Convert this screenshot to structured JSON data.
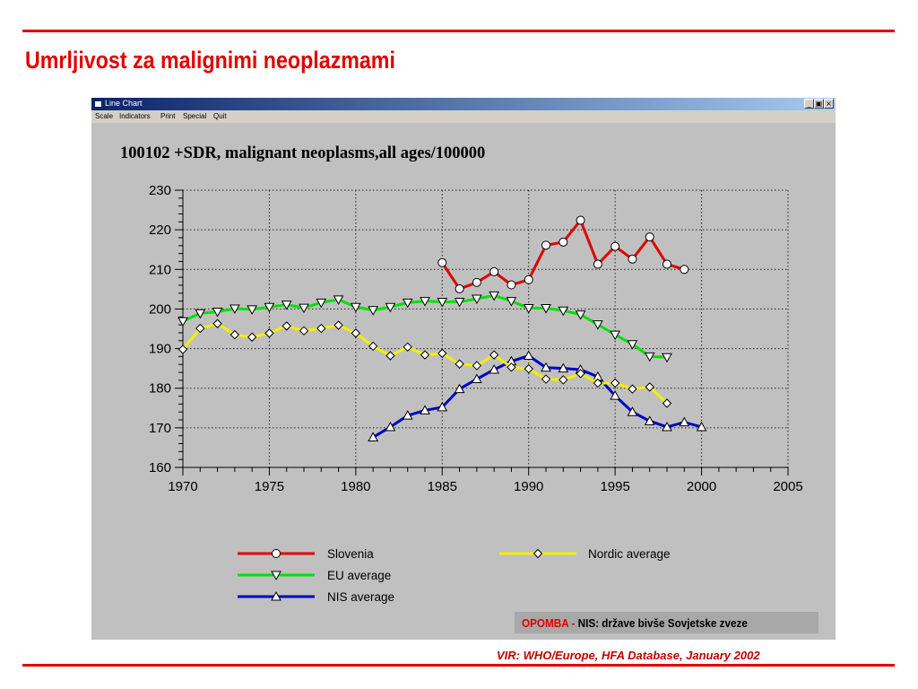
{
  "slide_title": "Umrljivost za malignimi neoplazmami",
  "window": {
    "title": "Line Chart",
    "menu": [
      "Scale",
      "Indicators",
      "Print",
      "Special",
      "Quit"
    ]
  },
  "note": {
    "label": "OPOMBA -",
    "text": "NIS: države bivše Sovjetske zveze"
  },
  "source": "VIR: WHO/Europe, HFA Database, January 2002",
  "chart_data": {
    "type": "line",
    "title": "100102 +SDR, malignant neoplasms,all ages/100000",
    "xlabel": "",
    "ylabel": "",
    "xlim": [
      1970,
      2005
    ],
    "ylim": [
      160,
      230
    ],
    "x_ticks": [
      1970,
      1975,
      1980,
      1985,
      1990,
      1995,
      2000,
      2005
    ],
    "y_ticks": [
      160,
      170,
      180,
      190,
      200,
      210,
      220,
      230
    ],
    "grid": true,
    "legend": "bottom",
    "series": [
      {
        "name": "Slovenia",
        "color": "#e00000",
        "marker": "circle",
        "x": [
          1985,
          1986,
          1987,
          1988,
          1989,
          1990,
          1991,
          1992,
          1993,
          1994,
          1995,
          1996,
          1997,
          1998,
          1999
        ],
        "values": [
          211.7,
          205.1,
          206.7,
          209.4,
          206.1,
          207.4,
          216.1,
          216.9,
          222.4,
          211.3,
          215.8,
          212.6,
          218.2,
          211.3,
          210.0
        ]
      },
      {
        "name": "Nordic average",
        "color": "#f0f000",
        "marker": "diamond",
        "x": [
          1970,
          1971,
          1972,
          1973,
          1974,
          1975,
          1976,
          1977,
          1978,
          1979,
          1980,
          1981,
          1982,
          1983,
          1984,
          1985,
          1986,
          1987,
          1988,
          1989,
          1990,
          1991,
          1992,
          1993,
          1994,
          1995,
          1996,
          1997,
          1998
        ],
        "values": [
          189.8,
          195.1,
          196.3,
          193.5,
          192.9,
          193.9,
          195.7,
          194.5,
          195.1,
          195.9,
          193.9,
          190.6,
          188.2,
          190.4,
          188.4,
          188.8,
          186.1,
          185.7,
          188.4,
          185.3,
          184.9,
          182.3,
          182.1,
          183.7,
          181.3,
          181.3,
          179.8,
          180.3,
          176.2
        ]
      },
      {
        "name": "EU average",
        "color": "#00e000",
        "marker": "triangle-down",
        "x": [
          1970,
          1971,
          1972,
          1973,
          1974,
          1975,
          1976,
          1977,
          1978,
          1979,
          1980,
          1981,
          1982,
          1983,
          1984,
          1985,
          1986,
          1987,
          1988,
          1989,
          1990,
          1991,
          1992,
          1993,
          1994,
          1995,
          1996,
          1997,
          1998
        ],
        "values": [
          196.9,
          198.9,
          199.3,
          200.1,
          199.9,
          200.5,
          201.1,
          200.3,
          201.6,
          202.4,
          200.5,
          199.7,
          200.5,
          201.6,
          202.0,
          201.8,
          201.8,
          202.6,
          203.4,
          202.0,
          200.2,
          200.2,
          199.6,
          198.6,
          196.1,
          193.5,
          191.1,
          188.0,
          187.8
        ]
      },
      {
        "name": "NIS average",
        "color": "#0000c8",
        "marker": "triangle-up",
        "x": [
          1981,
          1982,
          1983,
          1984,
          1985,
          1986,
          1987,
          1988,
          1989,
          1990,
          1991,
          1992,
          1993,
          1994,
          1995,
          1996,
          1997,
          1998,
          1999,
          2000
        ],
        "values": [
          167.6,
          170.2,
          173.1,
          174.4,
          175.2,
          179.8,
          182.3,
          184.7,
          186.8,
          188.2,
          185.2,
          185.0,
          184.7,
          182.9,
          178.1,
          174.0,
          171.7,
          170.2,
          171.4,
          170.2
        ]
      }
    ]
  }
}
